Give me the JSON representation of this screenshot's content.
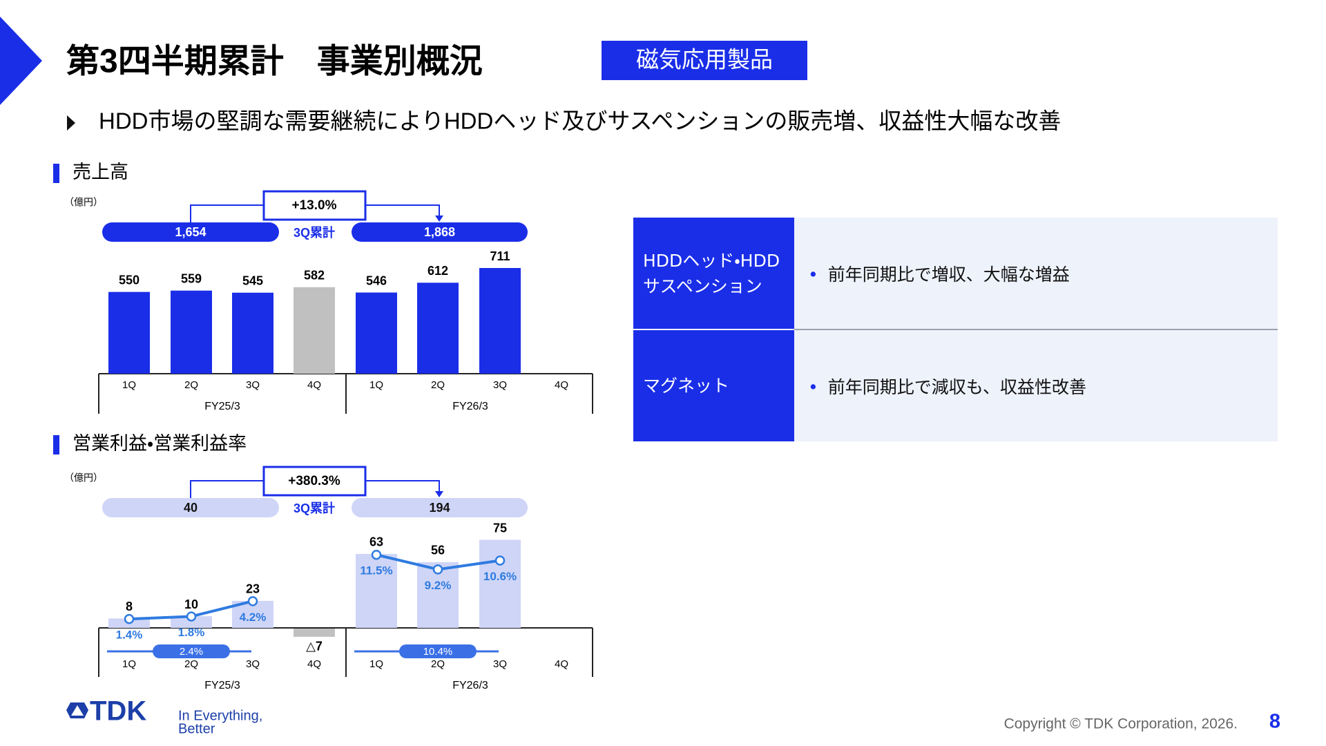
{
  "header": {
    "title": "第3四半期累計　事業別概況",
    "segment": "磁気応用製品"
  },
  "summary": "HDD市場の堅調な需要継続によりHDDヘッド及びサスペンションの販売増、収益性大幅な改善",
  "chart_data": [
    {
      "type": "bar",
      "title": "売上高",
      "unit": "（億円）",
      "categories": [
        "1Q",
        "2Q",
        "3Q",
        "4Q",
        "1Q",
        "2Q",
        "3Q",
        "4Q"
      ],
      "groups": [
        "FY25/3",
        "FY26/3"
      ],
      "values": [
        550,
        559,
        545,
        582,
        546,
        612,
        711,
        null
      ],
      "colors": [
        "#1a2ee8",
        "#1a2ee8",
        "#1a2ee8",
        "#c0c0c0",
        "#1a2ee8",
        "#1a2ee8",
        "#1a2ee8",
        "#1a2ee8"
      ],
      "cumulative": {
        "label": "3Q累計",
        "values": [
          1654,
          1868
        ],
        "value_labels": [
          "1,654",
          "1,868"
        ],
        "color": "#1a2ee8",
        "label_color": "#ffffff"
      },
      "change": {
        "value": 13.0,
        "label": "+13.0%"
      }
    },
    {
      "type": "bar-line",
      "title": "営業利益・営業利益率",
      "unit": "（億円）",
      "categories": [
        "1Q",
        "2Q",
        "3Q",
        "4Q",
        "1Q",
        "2Q",
        "3Q",
        "4Q"
      ],
      "groups": [
        "FY25/3",
        "FY26/3"
      ],
      "values": [
        8,
        10,
        23,
        -7,
        63,
        56,
        75,
        null
      ],
      "value_labels": [
        "8",
        "10",
        "23",
        "△7",
        "63",
        "56",
        "75",
        null
      ],
      "colors": [
        "#cfd5f7",
        "#cfd5f7",
        "#cfd5f7",
        "#c0c0c0",
        "#cfd5f7",
        "#cfd5f7",
        "#cfd5f7",
        "#cfd5f7"
      ],
      "rate": {
        "values": [
          1.4,
          1.8,
          4.2,
          null,
          11.5,
          9.2,
          10.6,
          null
        ],
        "value_labels": [
          "1.4%",
          "1.8%",
          "4.2%",
          null,
          "11.5%",
          "9.2%",
          "10.6%",
          null
        ],
        "color": "#2f7be0"
      },
      "rate_cumulative": {
        "values": [
          2.4,
          10.4
        ],
        "value_labels": [
          "2.4%",
          "10.4%"
        ],
        "color": "#3a6fe6"
      },
      "cumulative": {
        "label": "3Q累計",
        "values": [
          40,
          194
        ],
        "value_labels": [
          "40",
          "194"
        ],
        "color": "#cfd5f7",
        "label_color": "#111111"
      },
      "change": {
        "value": 380.3,
        "label": "+380.3%"
      }
    }
  ],
  "table": {
    "rows": [
      [
        "HDDヘッド・HDDサスペンション",
        "前年同期比で増収、大幅な増益"
      ],
      [
        "マグネット",
        "前年同期比で減収も、収益性改善"
      ]
    ]
  },
  "footer": {
    "brand": "TDK",
    "tagline": [
      "In Everything,",
      "Better"
    ],
    "copyright": "Copyright © TDK Corporation, 2026.",
    "page": 8
  }
}
